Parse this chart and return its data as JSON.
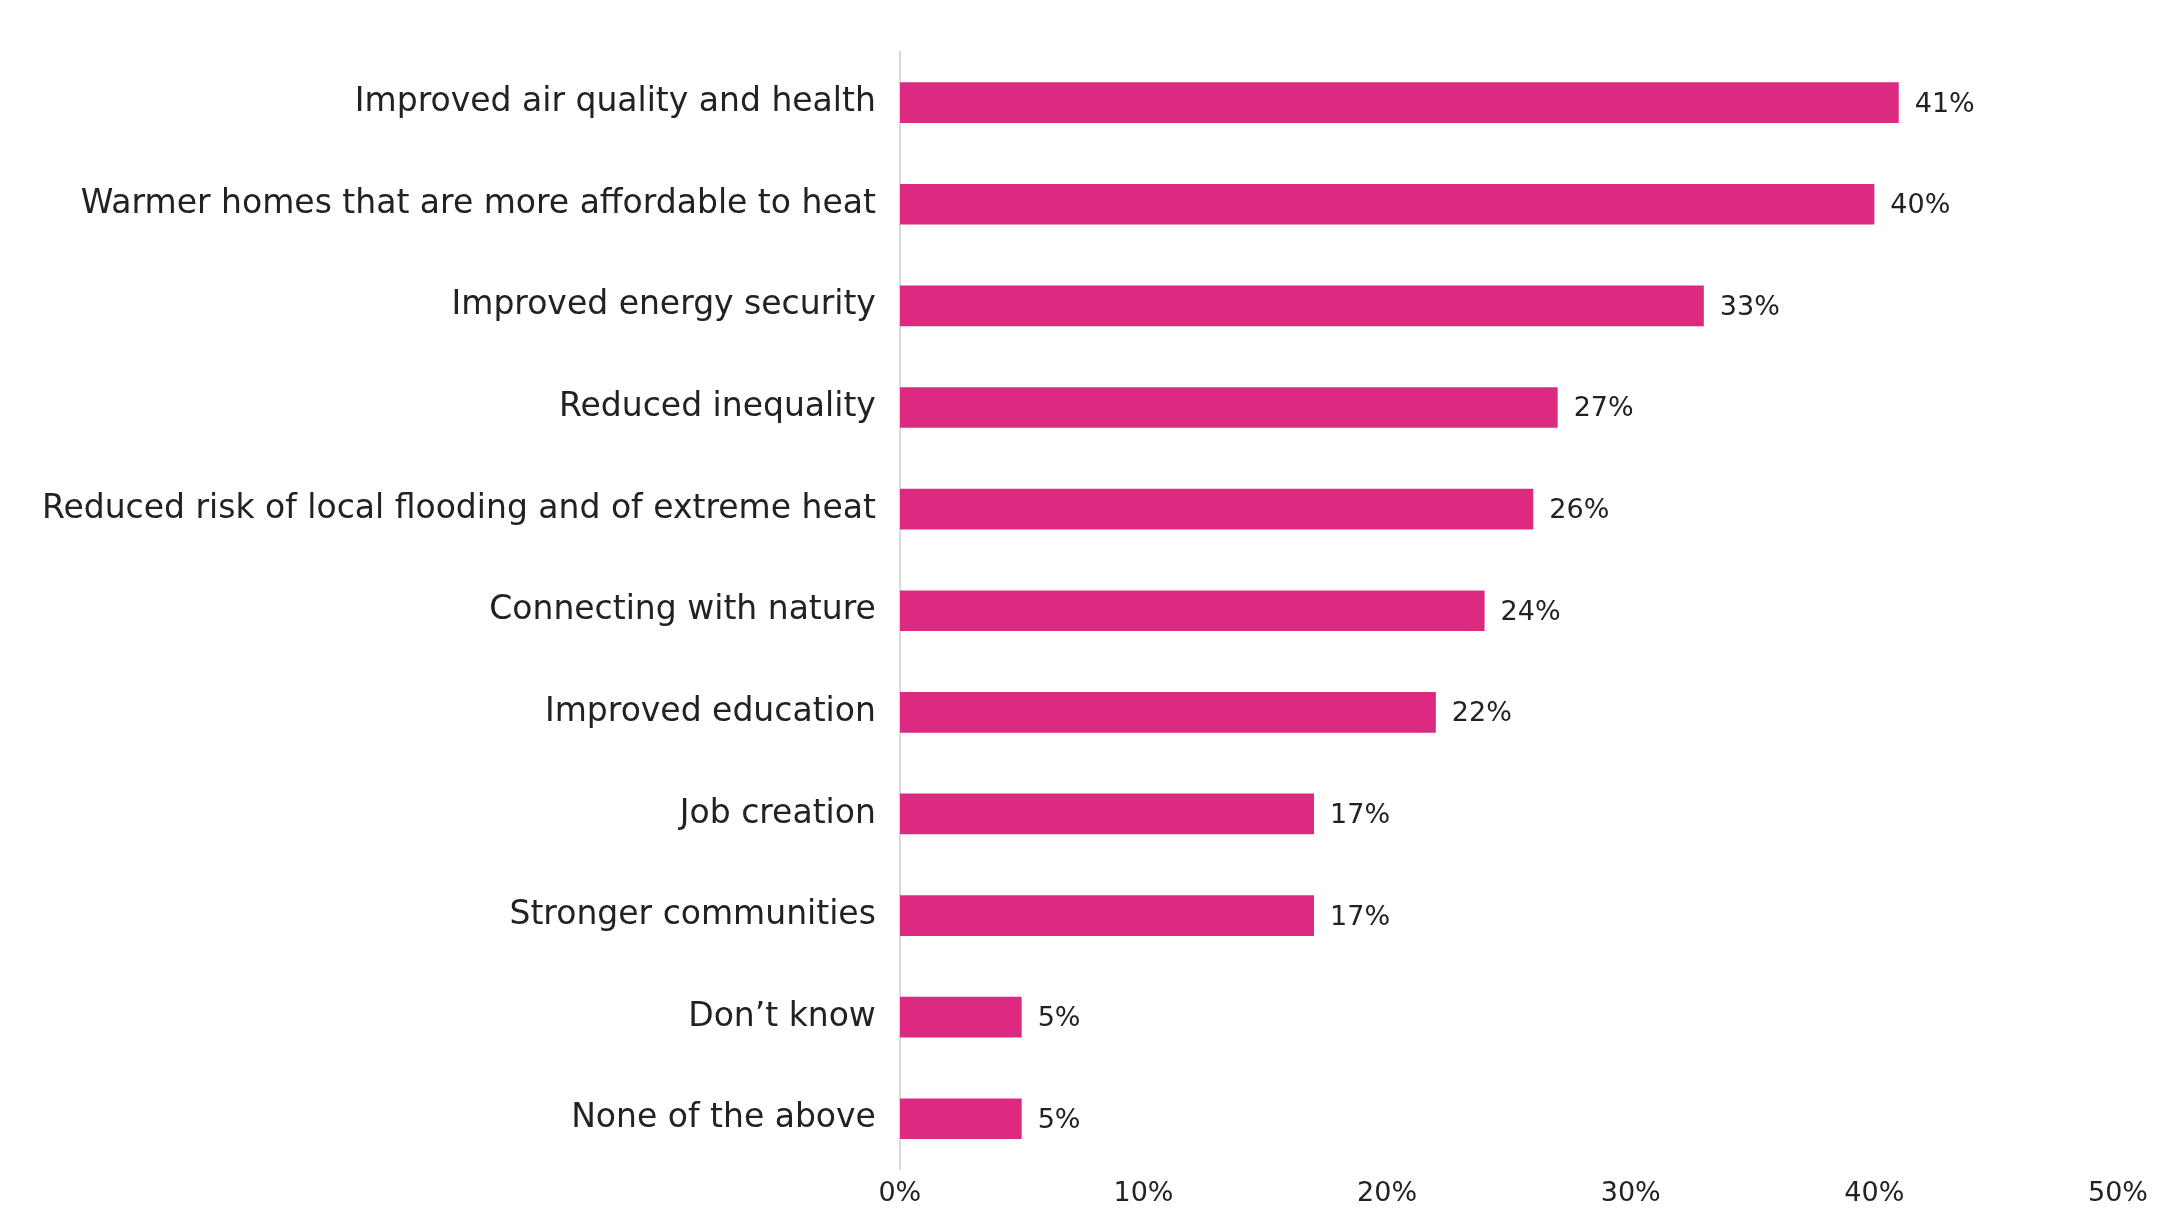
{
  "chart_data": {
    "type": "bar",
    "orientation": "horizontal",
    "categories": [
      "Improved air quality and health",
      "Warmer homes that are more affordable to heat",
      "Improved energy security",
      "Reduced inequality",
      "Reduced risk of local flooding and of extreme heat",
      "Connecting with nature",
      "Improved education",
      "Job creation",
      "Stronger communities",
      "Don’t know",
      "None of the above"
    ],
    "values": [
      41,
      40,
      33,
      27,
      26,
      24,
      22,
      17,
      17,
      5,
      5
    ],
    "color": "#dc2a80",
    "xlim": [
      0,
      50
    ],
    "xticks": [
      {
        "value": 0,
        "label": "0%"
      },
      {
        "value": 10,
        "label": "10%"
      },
      {
        "value": 20,
        "label": "20%"
      },
      {
        "value": 30,
        "label": "30%"
      },
      {
        "value": 40,
        "label": "40%"
      },
      {
        "value": 50,
        "label": "50%"
      }
    ],
    "value_labels": [
      "41%",
      "40%",
      "33%",
      "27%",
      "26%",
      "24%",
      "22%",
      "17%",
      "17%",
      "5%",
      "5%"
    ],
    "grid": false,
    "legend": false
  }
}
